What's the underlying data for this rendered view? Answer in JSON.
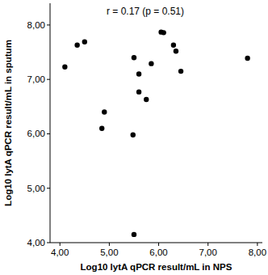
{
  "chart_data": {
    "type": "scatter",
    "annotation": "r = 0.17 (p = 0.51)",
    "x_label": "Log10 lytA qPCR result/mL in NPS",
    "y_label": "Log10 lytA qPCR result/mL in sputum",
    "color": "#000000",
    "marker": "circle",
    "grid": false,
    "x": [
      4.1,
      4.35,
      4.5,
      4.9,
      4.85,
      5.5,
      5.6,
      5.6,
      5.75,
      5.85,
      5.48,
      5.5,
      6.05,
      6.1,
      6.3,
      6.35,
      6.45,
      7.8
    ],
    "values": [
      7.23,
      7.63,
      7.69,
      6.4,
      6.1,
      7.4,
      7.1,
      6.77,
      6.63,
      7.29,
      5.98,
      4.15,
      7.87,
      7.86,
      7.63,
      7.52,
      7.15,
      7.39
    ],
    "xlim": [
      3.8,
      8.1
    ],
    "ylim": [
      4.0,
      8.4
    ],
    "xticks": [
      {
        "value": 4,
        "label": "4,00"
      },
      {
        "value": 5,
        "label": "5,00"
      },
      {
        "value": 6,
        "label": "6,00"
      },
      {
        "value": 7,
        "label": "7,00"
      },
      {
        "value": 8,
        "label": "8,00"
      }
    ],
    "yticks": [
      {
        "value": 4,
        "label": "4,00"
      },
      {
        "value": 5,
        "label": "5,00"
      },
      {
        "value": 6,
        "label": "6,00"
      },
      {
        "value": 7,
        "label": "7,00"
      },
      {
        "value": 8,
        "label": "8,00"
      }
    ]
  }
}
